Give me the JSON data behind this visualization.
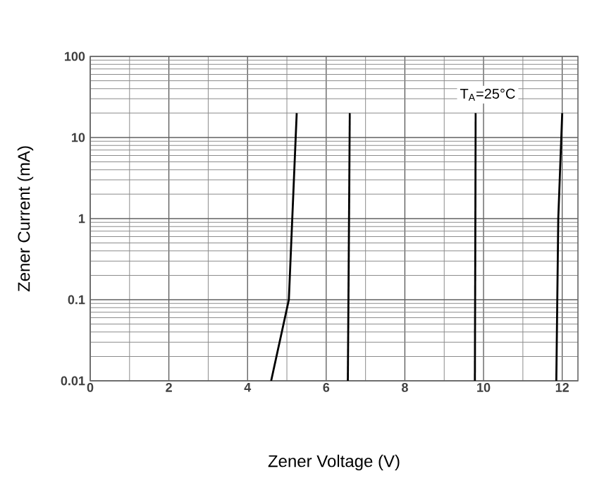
{
  "chart_data": {
    "type": "line",
    "xlabel": "Zener Voltage (V)",
    "ylabel": "Zener Current (mA)",
    "annotations": [
      "T$_{A}$=25°C"
    ],
    "series": [
      {
        "color": "#000000",
        "x": [
          4.6,
          5.05,
          5.25
        ],
        "values": [
          0.01,
          0.1,
          20
        ]
      },
      {
        "color": "#000000",
        "x": [
          6.55,
          6.6
        ],
        "values": [
          0.01,
          20
        ]
      },
      {
        "color": "#000000",
        "x": [
          9.78,
          9.8
        ],
        "values": [
          0.01,
          20
        ]
      },
      {
        "color": "#000000",
        "x": [
          11.85,
          11.9,
          12.0
        ],
        "values": [
          0.01,
          1,
          20
        ]
      }
    ],
    "xlim": [
      0,
      12.4
    ],
    "xticks": [
      0,
      2,
      4,
      6,
      8,
      10,
      12
    ],
    "ylim": [
      0.01,
      100
    ],
    "yticks": [
      0.01,
      0.1,
      1,
      10,
      100
    ],
    "log": "y",
    "grid": true,
    "line_style": "solid",
    "marker": "none"
  }
}
